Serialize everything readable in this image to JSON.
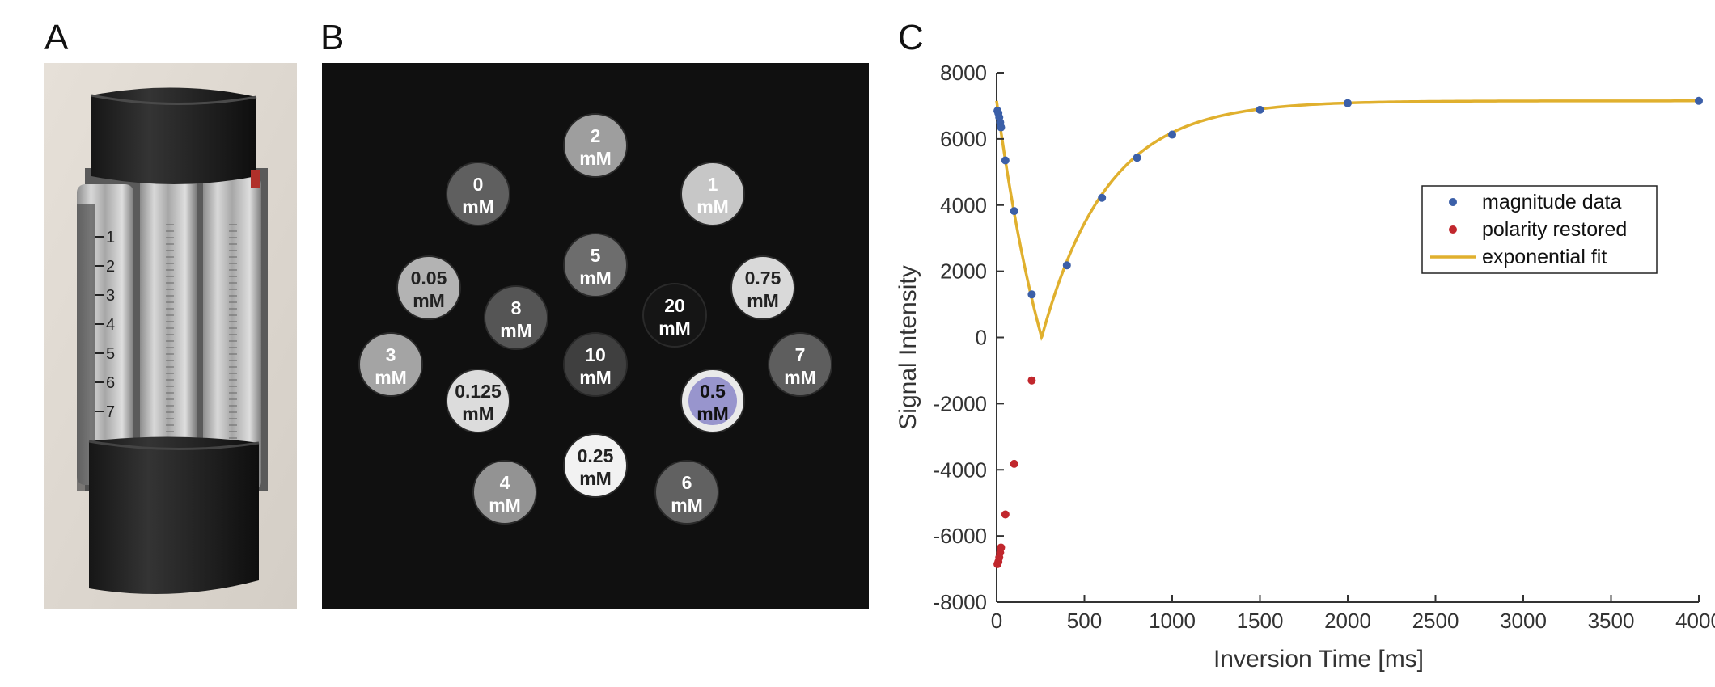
{
  "panels": {
    "a": "A",
    "b": "B",
    "c": "C"
  },
  "photo": {
    "scale_marks": [
      "1",
      "2",
      "3",
      "4",
      "5",
      "6",
      "7"
    ]
  },
  "phantom": {
    "vials": [
      {
        "conc": "2",
        "unit": "mM",
        "gray": "#9e9e9e",
        "text": "#ffffff",
        "tint": false
      },
      {
        "conc": "0",
        "unit": "mM",
        "gray": "#5f5f5f",
        "text": "#ffffff",
        "tint": false
      },
      {
        "conc": "1",
        "unit": "mM",
        "gray": "#c7c7c7",
        "text": "#ffffff",
        "tint": false
      },
      {
        "conc": "5",
        "unit": "mM",
        "gray": "#6d6d6d",
        "text": "#ffffff",
        "tint": false
      },
      {
        "conc": "0.05",
        "unit": "mM",
        "gray": "#b3b3b3",
        "text": "#222222",
        "tint": false
      },
      {
        "conc": "0.75",
        "unit": "mM",
        "gray": "#d9d9d9",
        "text": "#222222",
        "tint": false
      },
      {
        "conc": "8",
        "unit": "mM",
        "gray": "#555555",
        "text": "#ffffff",
        "tint": false
      },
      {
        "conc": "20",
        "unit": "mM",
        "gray": "#151515",
        "text": "#ffffff",
        "tint": false
      },
      {
        "conc": "3",
        "unit": "mM",
        "gray": "#a4a4a4",
        "text": "#ffffff",
        "tint": false
      },
      {
        "conc": "10",
        "unit": "mM",
        "gray": "#3f3f3f",
        "text": "#ffffff",
        "tint": false
      },
      {
        "conc": "7",
        "unit": "mM",
        "gray": "#5e5e5e",
        "text": "#ffffff",
        "tint": false
      },
      {
        "conc": "0.125",
        "unit": "mM",
        "gray": "#dcdcdc",
        "text": "#222222",
        "tint": false
      },
      {
        "conc": "0.5",
        "unit": "mM",
        "gray": "#eaeaea",
        "text": "#111111",
        "tint": true
      },
      {
        "conc": "0.25",
        "unit": "mM",
        "gray": "#f2f2f2",
        "text": "#222222",
        "tint": false
      },
      {
        "conc": "4",
        "unit": "mM",
        "gray": "#939393",
        "text": "#ffffff",
        "tint": false
      },
      {
        "conc": "6",
        "unit": "mM",
        "gray": "#616161",
        "text": "#ffffff",
        "tint": false
      }
    ],
    "tint_color": "#8a86c8"
  },
  "chart_data": {
    "type": "scatter",
    "xlabel": "Inversion Time [ms]",
    "ylabel": "Signal Intensity",
    "xlim": [
      0,
      4000
    ],
    "ylim": [
      -8000,
      8000
    ],
    "xticks": [
      "0",
      "500",
      "1000",
      "1500",
      "2000",
      "2500",
      "3000",
      "3500",
      "4000"
    ],
    "yticks": [
      "8000",
      "6000",
      "4000",
      "2000",
      "0",
      "-2000",
      "-4000",
      "-6000",
      "-8000"
    ],
    "grid": false,
    "legend_position": "right",
    "series": [
      {
        "name": "magnitude data",
        "kind": "points",
        "color": "#3b5fa8",
        "x": [
          5,
          10,
          15,
          20,
          25,
          50,
          100,
          200,
          400,
          600,
          800,
          1000,
          1500,
          2000,
          4000
        ],
        "y": [
          6850,
          6780,
          6650,
          6500,
          6350,
          5350,
          3820,
          1300,
          2180,
          4220,
          5430,
          6130,
          6880,
          7080,
          7150
        ]
      },
      {
        "name": "polarity restored",
        "kind": "points",
        "color": "#c1272d",
        "x": [
          5,
          10,
          15,
          20,
          25,
          50,
          100,
          200
        ],
        "y": [
          -6850,
          -6780,
          -6650,
          -6500,
          -6350,
          -5350,
          -3820,
          -1300
        ]
      },
      {
        "name": "exponential fit",
        "kind": "line",
        "color": "#e0b02e",
        "model": "abs(S0*(1-2*exp(-x/T1))+C)",
        "S0": 7150,
        "T1": 370
      }
    ]
  }
}
